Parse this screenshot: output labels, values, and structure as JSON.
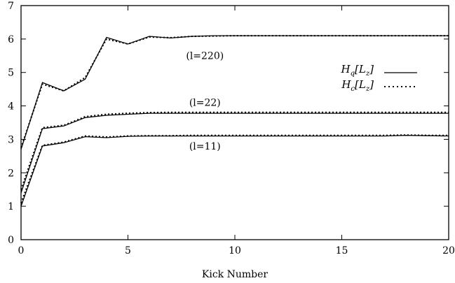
{
  "chart_data": {
    "type": "line",
    "title": "",
    "xlabel": "Kick Number",
    "ylabel": "",
    "xlim": [
      0,
      20
    ],
    "ylim": [
      0,
      7
    ],
    "x_ticks": [
      0,
      5,
      10,
      15,
      20
    ],
    "y_ticks": [
      0,
      1,
      2,
      3,
      4,
      5,
      6,
      7
    ],
    "grid": false,
    "legend_position": "right",
    "legend": [
      {
        "label": "Hq[Lz]",
        "style": "solid"
      },
      {
        "label": "Hc[Lz]",
        "style": "dotted"
      }
    ],
    "x": [
      0,
      1,
      2,
      3,
      4,
      5,
      6,
      7,
      8,
      9,
      10,
      11,
      12,
      13,
      14,
      15,
      16,
      17,
      18,
      19,
      20
    ],
    "series": [
      {
        "group": "l=220",
        "style": "solid",
        "values": [
          2.7,
          4.7,
          4.45,
          4.8,
          6.05,
          5.85,
          6.08,
          6.03,
          6.08,
          6.1,
          6.1,
          6.1,
          6.1,
          6.1,
          6.1,
          6.1,
          6.1,
          6.1,
          6.1,
          6.1,
          6.1
        ]
      },
      {
        "group": "l=220",
        "style": "dotted",
        "values": [
          2.75,
          4.65,
          4.45,
          4.85,
          6.0,
          5.85,
          6.06,
          6.04,
          6.08,
          6.09,
          6.1,
          6.1,
          6.1,
          6.1,
          6.1,
          6.1,
          6.1,
          6.1,
          6.1,
          6.1,
          6.1
        ]
      },
      {
        "group": "l=22",
        "style": "solid",
        "values": [
          1.4,
          3.32,
          3.4,
          3.65,
          3.72,
          3.75,
          3.78,
          3.78,
          3.78,
          3.78,
          3.78,
          3.78,
          3.78,
          3.78,
          3.78,
          3.78,
          3.78,
          3.78,
          3.78,
          3.78,
          3.78
        ]
      },
      {
        "group": "l=22",
        "style": "dotted",
        "values": [
          1.5,
          3.35,
          3.42,
          3.68,
          3.75,
          3.78,
          3.8,
          3.81,
          3.81,
          3.81,
          3.81,
          3.81,
          3.81,
          3.81,
          3.81,
          3.81,
          3.81,
          3.81,
          3.81,
          3.81,
          3.81
        ]
      },
      {
        "group": "l=11",
        "style": "solid",
        "values": [
          1.0,
          2.8,
          2.9,
          3.08,
          3.05,
          3.09,
          3.1,
          3.1,
          3.1,
          3.1,
          3.1,
          3.1,
          3.1,
          3.1,
          3.1,
          3.1,
          3.1,
          3.1,
          3.12,
          3.11,
          3.1
        ]
      },
      {
        "group": "l=11",
        "style": "dotted",
        "values": [
          1.1,
          2.82,
          2.92,
          3.1,
          3.07,
          3.1,
          3.11,
          3.11,
          3.12,
          3.12,
          3.12,
          3.12,
          3.12,
          3.12,
          3.12,
          3.12,
          3.12,
          3.12,
          3.13,
          3.12,
          3.12
        ]
      }
    ],
    "annotations": [
      {
        "text": "(l=220)",
        "x": 8.6,
        "y": 5.4
      },
      {
        "text": "(l=22)",
        "x": 8.6,
        "y": 4.0
      },
      {
        "text": "(l=11)",
        "x": 8.6,
        "y": 2.7
      }
    ]
  }
}
